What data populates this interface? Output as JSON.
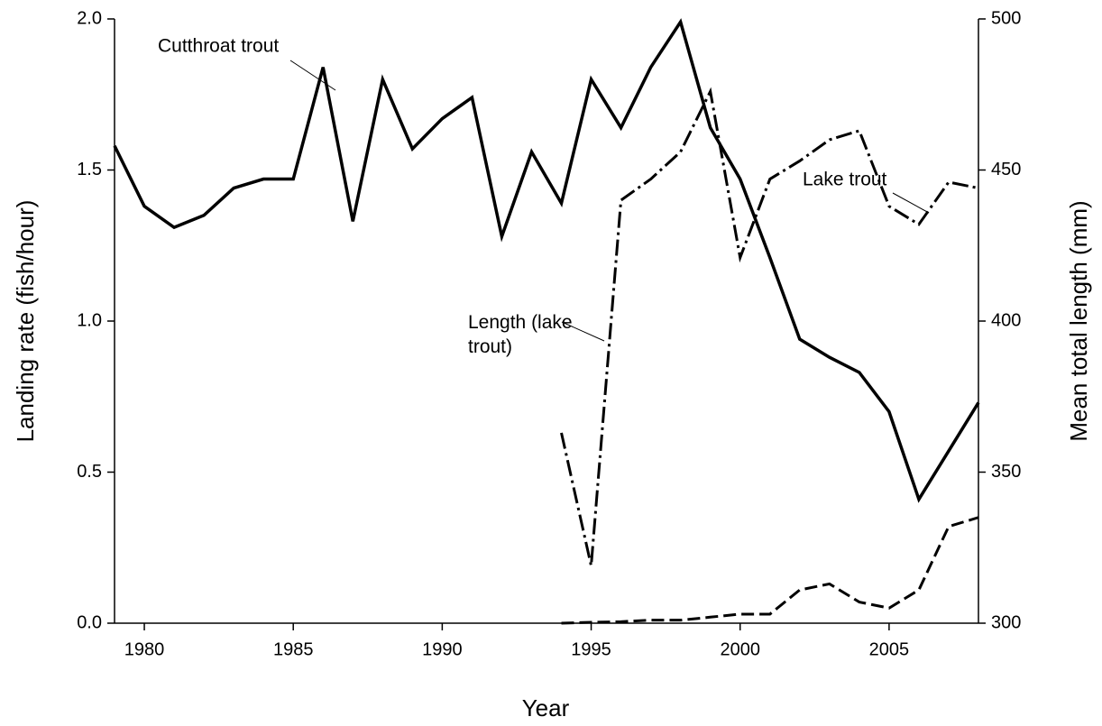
{
  "chart_data": {
    "type": "line",
    "x_label": "Year",
    "y_label": "Landing rate (fish/hour)",
    "y2_label": "Mean total length (mm)",
    "x": [
      1979,
      1980,
      1981,
      1982,
      1983,
      1984,
      1985,
      1986,
      1987,
      1988,
      1989,
      1990,
      1991,
      1992,
      1993,
      1994,
      1995,
      1996,
      1997,
      1998,
      1999,
      2000,
      2001,
      2002,
      2003,
      2004,
      2005,
      2006,
      2007,
      2008
    ],
    "xlim": [
      1979,
      2008
    ],
    "xticks": [
      1980,
      1985,
      1990,
      1995,
      2000,
      2005
    ],
    "ylim": [
      0,
      2
    ],
    "yticks": [
      {
        "value": 0,
        "label": "0.0"
      },
      0.5,
      {
        "value": 1,
        "label": "1.0"
      },
      1.5,
      {
        "value": 2,
        "label": "2.0"
      }
    ],
    "y2lim": [
      300,
      500
    ],
    "y2ticks": [
      300,
      350,
      400,
      450,
      500
    ],
    "grid": false,
    "series": [
      {
        "name": "Cutthroat trout",
        "color": "#000000",
        "dash": "solid",
        "values": [
          1.58,
          1.38,
          1.31,
          1.35,
          1.44,
          1.47,
          1.47,
          1.84,
          1.33,
          1.8,
          1.57,
          1.67,
          1.74,
          1.28,
          1.56,
          1.39,
          1.8,
          1.64,
          1.84,
          1.99,
          1.64,
          1.47,
          1.21,
          0.94,
          0.88,
          0.83,
          0.7,
          0.41,
          0.57,
          0.73
        ]
      },
      {
        "name": "Lake trout",
        "color": "#000000",
        "dash": "dashed",
        "values": [
          null,
          null,
          null,
          null,
          null,
          null,
          null,
          null,
          null,
          null,
          null,
          null,
          null,
          null,
          null,
          0.0,
          0.003,
          0.005,
          0.01,
          0.01,
          0.02,
          0.03,
          0.03,
          0.11,
          0.13,
          0.07,
          0.05,
          0.11,
          0.32,
          0.35
        ]
      },
      {
        "name": "Length (lake trout)",
        "color": "#000000",
        "dash": "dashdot",
        "axis": "y2",
        "values": [
          null,
          null,
          null,
          null,
          null,
          null,
          null,
          null,
          null,
          null,
          null,
          null,
          null,
          null,
          null,
          363,
          319,
          440,
          447,
          456,
          476,
          421,
          447,
          453,
          460,
          463,
          438,
          432,
          446,
          444
        ]
      }
    ]
  }
}
